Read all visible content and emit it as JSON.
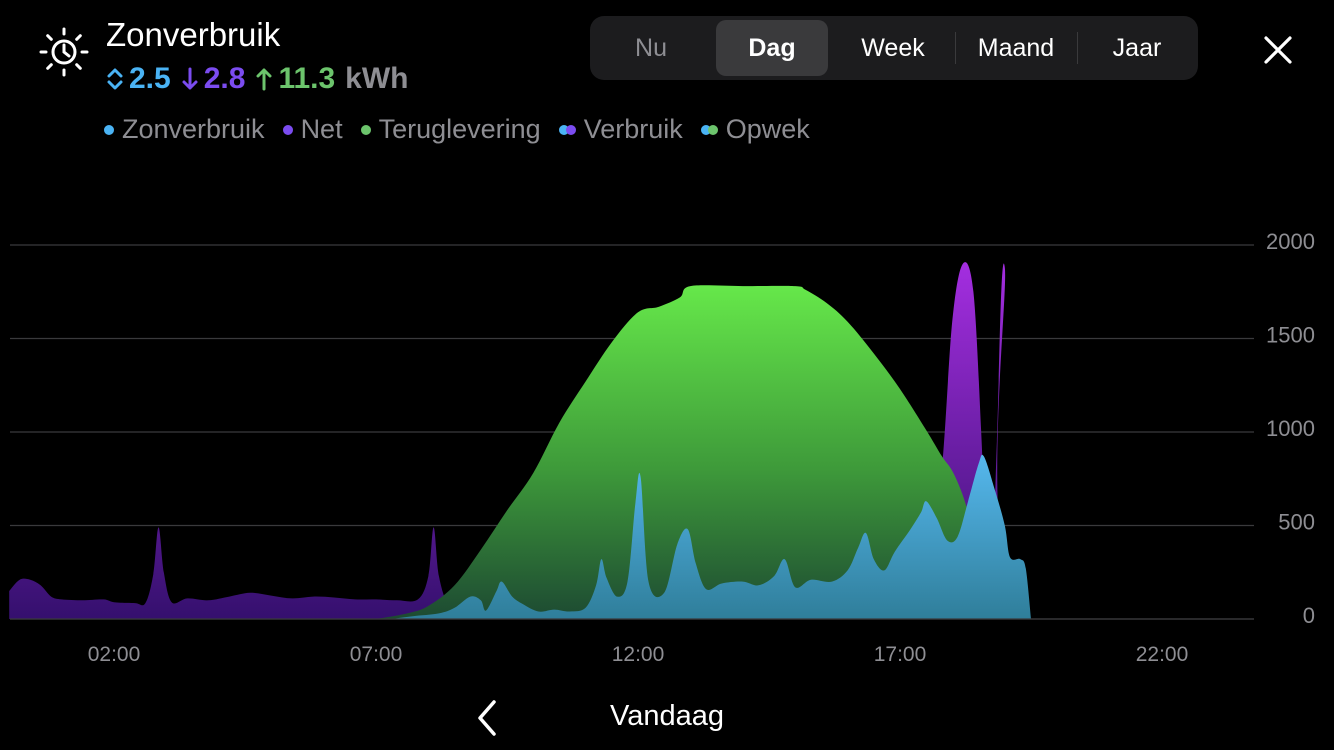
{
  "header": {
    "title": "Zonverbruik",
    "icon": "sun-clock-icon",
    "summary": {
      "self_use": "2.5",
      "grid": "2.8",
      "return": "11.3",
      "unit": "kWh",
      "colors": {
        "self_use": "#4ab3f4",
        "grid": "#7b4cf0",
        "return": "#6cc46c",
        "unit": "#8e8e93"
      }
    }
  },
  "legend": [
    {
      "label": "Zonverbruik",
      "colors": [
        "#4ab3f4"
      ]
    },
    {
      "label": "Net",
      "colors": [
        "#7b4cf0"
      ]
    },
    {
      "label": "Teruglevering",
      "colors": [
        "#6cc46c"
      ]
    },
    {
      "label": "Verbruik",
      "colors": [
        "#4ab3f4",
        "#7b4cf0"
      ]
    },
    {
      "label": "Opwek",
      "colors": [
        "#4ab3f4",
        "#6cc46c"
      ]
    }
  ],
  "periods": {
    "tabs": [
      "Nu",
      "Dag",
      "Week",
      "Maand",
      "Jaar"
    ],
    "selected": "Dag",
    "disabled": [
      "Nu"
    ]
  },
  "close": {
    "icon": "close-icon"
  },
  "footer": {
    "prev_icon": "chevron-left-icon",
    "label": "Vandaag"
  },
  "chart_data": {
    "type": "area",
    "x_unit": "hours",
    "xlim": [
      0,
      24
    ],
    "ylim": [
      0,
      2000
    ],
    "yticks": [
      0,
      500,
      1000,
      1500,
      2000
    ],
    "xticks": [
      {
        "x": 2,
        "label": "02:00"
      },
      {
        "x": 7,
        "label": "07:00"
      },
      {
        "x": 12,
        "label": "12:00"
      },
      {
        "x": 17,
        "label": "17:00"
      },
      {
        "x": 22,
        "label": "22:00"
      }
    ],
    "grid": true,
    "series": [
      {
        "name": "Net",
        "color": "#7b2fd6",
        "points": [
          [
            0,
            150
          ],
          [
            0.2,
            210
          ],
          [
            0.4,
            210
          ],
          [
            0.6,
            180
          ],
          [
            0.8,
            120
          ],
          [
            1.0,
            105
          ],
          [
            1.4,
            100
          ],
          [
            1.8,
            105
          ],
          [
            2.0,
            90
          ],
          [
            2.4,
            85
          ],
          [
            2.6,
            85
          ],
          [
            2.75,
            240
          ],
          [
            2.85,
            490
          ],
          [
            2.95,
            250
          ],
          [
            3.1,
            90
          ],
          [
            3.4,
            110
          ],
          [
            3.8,
            100
          ],
          [
            4.2,
            120
          ],
          [
            4.6,
            140
          ],
          [
            5.0,
            125
          ],
          [
            5.4,
            110
          ],
          [
            5.8,
            120
          ],
          [
            6.2,
            115
          ],
          [
            6.6,
            105
          ],
          [
            7.0,
            105
          ],
          [
            7.4,
            100
          ],
          [
            7.8,
            105
          ],
          [
            8.0,
            230
          ],
          [
            8.1,
            490
          ],
          [
            8.2,
            230
          ],
          [
            8.4,
            60
          ],
          [
            8.7,
            20
          ],
          [
            9.0,
            0
          ],
          [
            17.5,
            0
          ],
          [
            17.8,
            800
          ],
          [
            18.0,
            1600
          ],
          [
            18.2,
            1900
          ],
          [
            18.4,
            1750
          ],
          [
            18.55,
            1000
          ],
          [
            18.65,
            300
          ],
          [
            18.75,
            120
          ],
          [
            18.85,
            950
          ],
          [
            19.0,
            1880
          ],
          [
            19.3,
            0
          ],
          [
            24,
            0
          ]
        ]
      },
      {
        "name": "Teruglevering",
        "color": "#5ee04a",
        "points": [
          [
            7.0,
            0
          ],
          [
            7.6,
            30
          ],
          [
            8.0,
            70
          ],
          [
            8.5,
            180
          ],
          [
            9.0,
            370
          ],
          [
            9.5,
            580
          ],
          [
            10.0,
            780
          ],
          [
            10.5,
            1050
          ],
          [
            11.0,
            1270
          ],
          [
            11.5,
            1480
          ],
          [
            12.0,
            1640
          ],
          [
            12.4,
            1670
          ],
          [
            12.8,
            1720
          ],
          [
            13.0,
            1780
          ],
          [
            14.0,
            1780
          ],
          [
            15.0,
            1780
          ],
          [
            15.2,
            1760
          ],
          [
            15.6,
            1690
          ],
          [
            16.0,
            1590
          ],
          [
            16.5,
            1420
          ],
          [
            17.0,
            1230
          ],
          [
            17.5,
            1010
          ],
          [
            17.8,
            870
          ],
          [
            18.0,
            790
          ],
          [
            18.2,
            660
          ],
          [
            18.4,
            480
          ],
          [
            18.6,
            340
          ],
          [
            18.8,
            320
          ],
          [
            18.9,
            280
          ],
          [
            19.0,
            200
          ],
          [
            19.1,
            0
          ]
        ]
      },
      {
        "name": "Zonverbruik",
        "color": "#4ab3f4",
        "points": [
          [
            7.3,
            0
          ],
          [
            7.7,
            15
          ],
          [
            8.2,
            30
          ],
          [
            8.5,
            60
          ],
          [
            8.8,
            120
          ],
          [
            9.0,
            100
          ],
          [
            9.1,
            45
          ],
          [
            9.3,
            150
          ],
          [
            9.4,
            200
          ],
          [
            9.6,
            120
          ],
          [
            9.8,
            80
          ],
          [
            10.1,
            40
          ],
          [
            10.4,
            50
          ],
          [
            10.7,
            40
          ],
          [
            11.0,
            60
          ],
          [
            11.2,
            180
          ],
          [
            11.3,
            320
          ],
          [
            11.4,
            220
          ],
          [
            11.6,
            120
          ],
          [
            11.8,
            200
          ],
          [
            11.95,
            620
          ],
          [
            12.05,
            760
          ],
          [
            12.2,
            200
          ],
          [
            12.5,
            140
          ],
          [
            12.75,
            400
          ],
          [
            12.95,
            480
          ],
          [
            13.1,
            300
          ],
          [
            13.3,
            160
          ],
          [
            13.6,
            190
          ],
          [
            14.0,
            200
          ],
          [
            14.3,
            180
          ],
          [
            14.6,
            230
          ],
          [
            14.8,
            320
          ],
          [
            15.0,
            170
          ],
          [
            15.3,
            210
          ],
          [
            15.7,
            200
          ],
          [
            16.0,
            260
          ],
          [
            16.2,
            380
          ],
          [
            16.35,
            460
          ],
          [
            16.5,
            320
          ],
          [
            16.7,
            260
          ],
          [
            16.9,
            360
          ],
          [
            17.2,
            480
          ],
          [
            17.4,
            570
          ],
          [
            17.5,
            630
          ],
          [
            17.7,
            540
          ],
          [
            17.9,
            420
          ],
          [
            18.1,
            440
          ],
          [
            18.3,
            630
          ],
          [
            18.5,
            830
          ],
          [
            18.6,
            870
          ],
          [
            18.8,
            700
          ],
          [
            19.0,
            500
          ],
          [
            19.1,
            330
          ],
          [
            19.3,
            320
          ],
          [
            19.4,
            270
          ],
          [
            19.5,
            0
          ]
        ]
      }
    ]
  }
}
